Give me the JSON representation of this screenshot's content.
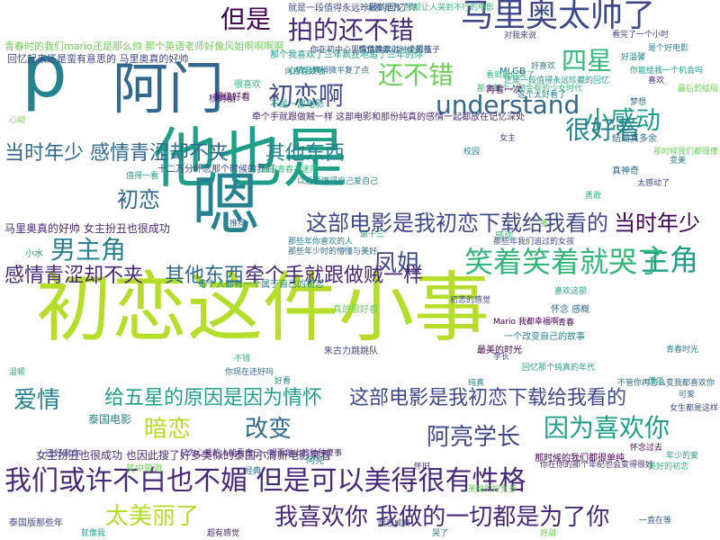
{
  "words": [
    {
      "text": "初恋这件小事",
      "color": "#b5de2b"
    },
    {
      "text": "他也是",
      "color": "#1f9e89"
    },
    {
      "text": "嗯",
      "color": "#26828e"
    },
    {
      "text": "阿门",
      "color": "#31688e"
    },
    {
      "text": "p",
      "color": "#26828e"
    },
    {
      "text": "我们或许不白也不媚 但是可以美得很有性格",
      "color": "#482878"
    },
    {
      "text": "马里奥太帅了",
      "color": "#3e4989"
    },
    {
      "text": "拍的还不错",
      "color": "#482878"
    },
    {
      "text": "但是",
      "color": "#440154"
    },
    {
      "text": "还不错",
      "color": "#6ece58"
    },
    {
      "text": "四星",
      "color": "#35b779"
    },
    {
      "text": "小感动",
      "color": "#1f9e89"
    },
    {
      "text": "understand",
      "color": "#31688e"
    },
    {
      "text": "初恋啊",
      "color": "#3e4989"
    },
    {
      "text": "很好看",
      "color": "#26828e"
    },
    {
      "text": "当时年少",
      "color": "#31688e"
    },
    {
      "text": "感情青涩却不夹",
      "color": "#31688e"
    },
    {
      "text": "其他东西",
      "color": "#26828e"
    },
    {
      "text": "初恋",
      "color": "#31688e"
    },
    {
      "text": "这部电影是我初恋下载给我看的",
      "color": "#3e4989"
    },
    {
      "text": "当时年少",
      "color": "#440154"
    },
    {
      "text": "男主角",
      "color": "#26828e"
    },
    {
      "text": "主角",
      "color": "#1f9e89"
    },
    {
      "text": "笑着笑着就哭了",
      "color": "#35b779"
    },
    {
      "text": "凤姐",
      "color": "#3e4989"
    },
    {
      "text": "感情青涩却不夹",
      "color": "#482878"
    },
    {
      "text": "其他东西",
      "color": "#31688e"
    },
    {
      "text": "牵个手就跟做贼一样",
      "color": "#482878"
    },
    {
      "text": "爱情",
      "color": "#26828e"
    },
    {
      "text": "给五星的原因是因为情怀",
      "color": "#1f9e89"
    },
    {
      "text": "这部电影是我初恋下载给我看的",
      "color": "#3e4989"
    },
    {
      "text": "暗恋",
      "color": "#b5de2b"
    },
    {
      "text": "改变",
      "color": "#31688e"
    },
    {
      "text": "阿亮学长",
      "color": "#3e4989"
    },
    {
      "text": "因为喜欢你",
      "color": "#1f9e89"
    },
    {
      "text": "太美丽了",
      "color": "#b5de2b"
    },
    {
      "text": "我喜欢你 我做的一切都是为了你",
      "color": "#482878"
    },
    {
      "text": "马里奥真的好帅 女主扮丑也很成功",
      "color": "#482878"
    },
    {
      "text": "女主扮丑也很成功 也因此搜了好多类似的泰国小清新电影来看",
      "color": "#482878"
    },
    {
      "text": "青春时的我们mario还是那么帅 那个英语老师好像风姐啊啊啊啊",
      "color": "#6ece58"
    },
    {
      "text": "回忆起来还是蛮有意思的 马里奥真的好帅",
      "color": "#3e4989"
    },
    {
      "text": "那个我喜欢了三年疯狂地追了三年的你",
      "color": "#1f9e89"
    },
    {
      "text": "牵个手就跟做贼一样 这部电影和那份纯真的感情一起都放在记忆深处",
      "color": "#482878"
    },
    {
      "text": "十二万分怀念那个时候的我们",
      "color": "#3e4989"
    },
    {
      "text": "就是一段值得永远珍藏的回忆",
      "color": "#3e4989"
    },
    {
      "text": "你在初中心里偷偷喜欢过一个男孩子",
      "color": "#3e4989"
    },
    {
      "text": "感觉就像小时候的我",
      "color": "#31688e"
    },
    {
      "text": "心情总算稍微平复了点",
      "color": "#31688e"
    },
    {
      "text": "那个每个人都会有的少女时代",
      "color": "#35b779"
    },
    {
      "text": "那部让人哭到不行的电影",
      "color": "#35b779"
    },
    {
      "text": "以后要懂得自己爱自己",
      "color": "#26828e"
    },
    {
      "text": "那些年你喜欢的人",
      "color": "#26828e"
    },
    {
      "text": "你现在还好吗",
      "color": "#31688e"
    },
    {
      "text": "美丽的好女孩",
      "color": "#6ece58"
    },
    {
      "text": "学长",
      "color": "#3e4989"
    },
    {
      "text": "阿亮",
      "color": "#26828e"
    },
    {
      "text": "最美的时光",
      "color": "#440154"
    },
    {
      "text": "只为心爱的人能看自己一眼而做出的种种傻事",
      "color": "#482878"
    },
    {
      "text": "那些年我们追过的女孩",
      "color": "#3e4989"
    },
    {
      "text": "每个人都有一个属于自己的初恋",
      "color": "#26828e"
    },
    {
      "text": "那些年少时的懵懂与美好",
      "color": "#31688e"
    },
    {
      "text": "谢十三",
      "color": "#1f9e89"
    },
    {
      "text": "真的很好看",
      "color": "#6ece58"
    },
    {
      "text": "怀念 感概",
      "color": "#31688e"
    },
    {
      "text": "泰国电影",
      "color": "#26828e"
    },
    {
      "text": "还好有你",
      "color": "#3e4989"
    },
    {
      "text": "向青春致敬",
      "color": "#1f9e89"
    },
    {
      "text": "MLGB",
      "color": "#31688e"
    },
    {
      "text": "杨秀丽",
      "color": "#482878"
    },
    {
      "text": "小水",
      "color": "#1f9e89"
    },
    {
      "text": "很喜欢",
      "color": "#35b779"
    },
    {
      "text": "超级好看",
      "color": "#440154"
    },
    {
      "text": "不是一部电影",
      "color": "#1f9e89"
    },
    {
      "text": "泰国版那些年",
      "color": "#3e4989"
    },
    {
      "text": "笑中带泪",
      "color": "#6ece58"
    },
    {
      "text": "感动",
      "color": "#35b779"
    },
    {
      "text": "朱古力跳跳队",
      "color": "#3e4989"
    },
    {
      "text": "结局真多余",
      "color": "#31688e"
    },
    {
      "text": "真神奇",
      "color": "#31688e"
    },
    {
      "text": "青春",
      "color": "#440154"
    },
    {
      "text": "一个改变自己的故事",
      "color": "#26828e"
    },
    {
      "text": "回忆那个纯真的年代",
      "color": "#1f9e89"
    },
    {
      "text": "Mario 我都幸福啊",
      "color": "#440154"
    },
    {
      "text": "不管你再怎么变我都喜欢你",
      "color": "#31688e"
    },
    {
      "text": "你在你的那个年纪也会变得很好",
      "color": "#482878"
    },
    {
      "text": "那时候的我们都很单纯",
      "color": "#440154"
    },
    {
      "text": "看完了一个小时",
      "color": "#3e4989"
    },
    {
      "text": "这个太好看了",
      "color": "#26828e"
    },
    {
      "text": "看到最后哭了",
      "color": "#35b779"
    },
    {
      "text": "还是一段值得永远珍藏的回忆",
      "color": "#1f9e89"
    },
    {
      "text": "一起都是为了你",
      "color": "#31688e"
    },
    {
      "text": "好温馨",
      "color": "#26828e"
    },
    {
      "text": "对我来说",
      "color": "#3e4989"
    },
    {
      "text": "再看一次",
      "color": "#440154"
    },
    {
      "text": "好喜欢",
      "color": "#26828e"
    },
    {
      "text": "谁的青春不迷茫",
      "color": "#35b779"
    },
    {
      "text": "你能给我一个机会吗",
      "color": "#1f9e89"
    },
    {
      "text": "梦想",
      "color": "#31688e"
    },
    {
      "text": "喜欢",
      "color": "#482878"
    },
    {
      "text": "最后的结局",
      "color": "#6ece58"
    },
    {
      "text": "是个好电影",
      "color": "#26828e"
    },
    {
      "text": "太感动了",
      "color": "#3e4989"
    },
    {
      "text": "勇敢",
      "color": "#35b779"
    },
    {
      "text": "变美",
      "color": "#26828e"
    },
    {
      "text": "那时候我们都很傻",
      "color": "#6ece58"
    },
    {
      "text": "傻瓜",
      "color": "#1f9e89"
    },
    {
      "text": "可爱",
      "color": "#31688e"
    },
    {
      "text": "女生都是这样",
      "color": "#3e4989"
    },
    {
      "text": "青春时光",
      "color": "#26828e"
    },
    {
      "text": "怀念过去",
      "color": "#440154"
    },
    {
      "text": "美好的初恋",
      "color": "#35b779"
    },
    {
      "text": "年少的爱",
      "color": "#1f9e89"
    },
    {
      "text": "一直在等",
      "color": "#31688e"
    },
    {
      "text": "好甜",
      "color": "#6ece58"
    },
    {
      "text": "哭了",
      "color": "#26828e"
    },
    {
      "text": "暗恋成真",
      "color": "#3e4989"
    },
    {
      "text": "超有感觉",
      "color": "#482878"
    },
    {
      "text": "就像我",
      "color": "#1f9e89"
    },
    {
      "text": "不错",
      "color": "#35b779"
    },
    {
      "text": "好看",
      "color": "#26828e"
    },
    {
      "text": "经典",
      "color": "#31688e"
    },
    {
      "text": "美",
      "color": "#6ece58"
    },
    {
      "text": "喜欢这部",
      "color": "#1f9e89"
    },
    {
      "text": "初恋的感觉",
      "color": "#3e4989"
    },
    {
      "text": "纯真",
      "color": "#26828e"
    },
    {
      "text": "怀旧",
      "color": "#482878"
    },
    {
      "text": "温暖",
      "color": "#35b779"
    },
    {
      "text": "心动",
      "color": "#6ece58"
    },
    {
      "text": "值得一看",
      "color": "#1f9e89"
    },
    {
      "text": "推荐",
      "color": "#31688e"
    },
    {
      "text": "校园",
      "color": "#26828e"
    },
    {
      "text": "女主",
      "color": "#3e4989"
    }
  ]
}
